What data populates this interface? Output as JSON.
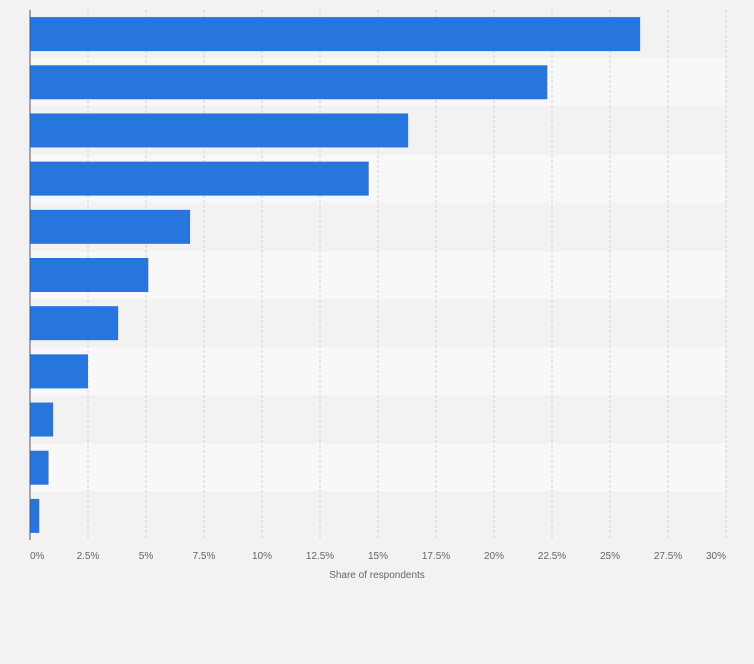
{
  "chart_data": {
    "type": "bar",
    "orientation": "horizontal",
    "categories": [
      "",
      "",
      "",
      "",
      "",
      "",
      "",
      "",
      "",
      "",
      ""
    ],
    "values": [
      26.3,
      22.3,
      16.3,
      14.6,
      6.9,
      5.1,
      3.8,
      2.5,
      1.0,
      0.8,
      0.4
    ],
    "title": "",
    "xlabel": "Share of respondents",
    "ylabel": "",
    "xlim": [
      0,
      30
    ],
    "ticks": [
      0,
      2.5,
      5,
      7.5,
      10,
      12.5,
      15,
      17.5,
      20,
      22.5,
      25,
      27.5,
      30
    ],
    "tick_labels": [
      "0%",
      "2.5%",
      "5%",
      "7.5%",
      "10%",
      "12.5%",
      "15%",
      "17.5%",
      "20%",
      "22.5%",
      "25%",
      "27.5%",
      "30%"
    ],
    "grid": true,
    "legend": "none",
    "colors": {
      "bar": "#2776de",
      "band_dark": "#f2f2f2",
      "band_light": "#f8f8f8",
      "grid": "#d4d4d4",
      "axis": "#555555",
      "tick_text": "#666666"
    }
  }
}
